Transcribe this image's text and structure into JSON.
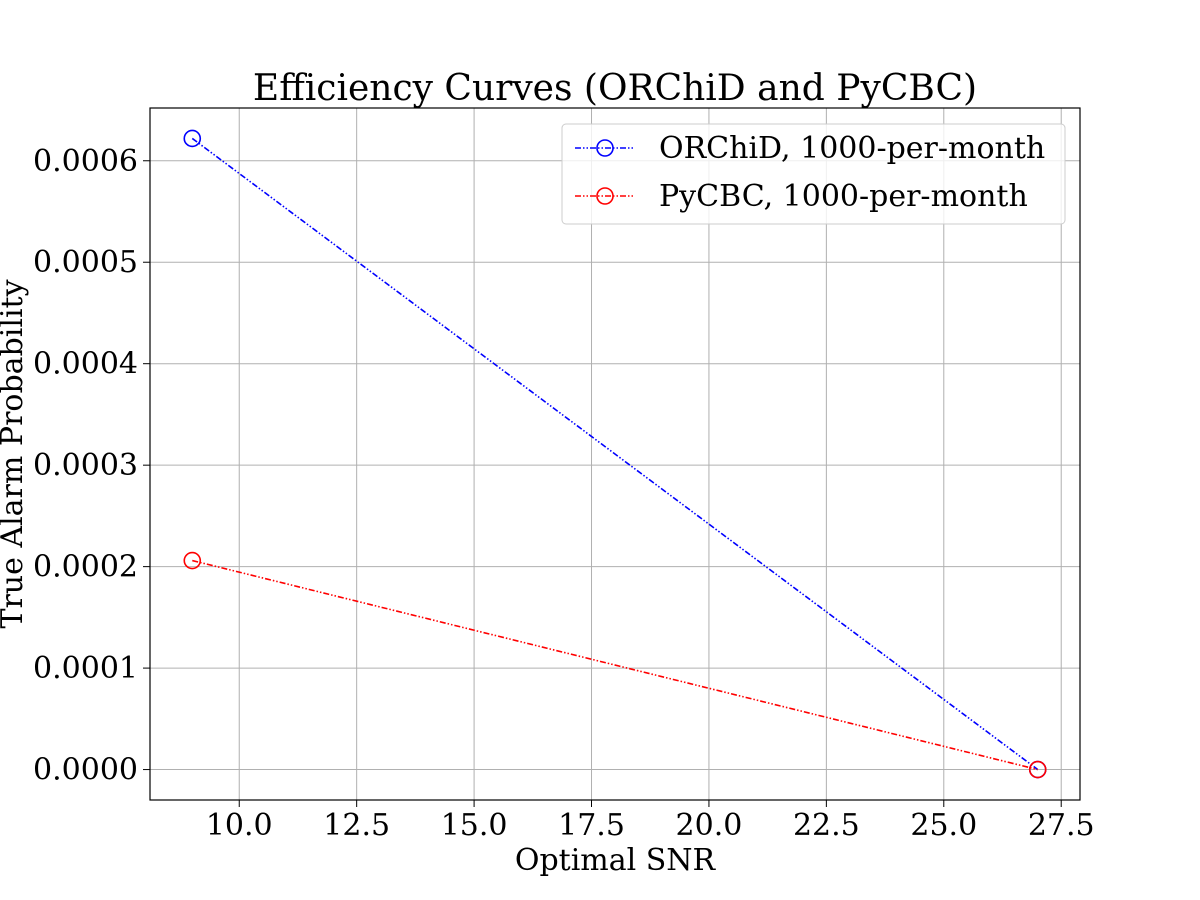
{
  "chart_data": {
    "type": "line",
    "title": "Efficiency Curves (ORChiD and PyCBC)",
    "xlabel": "Optimal SNR",
    "ylabel": "True Alarm Probability",
    "xlim": [
      8.1,
      27.9
    ],
    "ylim": [
      -3e-05,
      0.000652
    ],
    "xticks": [
      10.0,
      12.5,
      15.0,
      17.5,
      20.0,
      22.5,
      25.0,
      27.5
    ],
    "xtick_labels": [
      "10.0",
      "12.5",
      "15.0",
      "17.5",
      "20.0",
      "22.5",
      "25.0",
      "27.5"
    ],
    "yticks": [
      0.0,
      0.0001,
      0.0002,
      0.0003,
      0.0004,
      0.0005,
      0.0006
    ],
    "ytick_labels": [
      "0.0000",
      "0.0001",
      "0.0002",
      "0.0003",
      "0.0004",
      "0.0005",
      "0.0006"
    ],
    "grid": true,
    "legend_position": "top-right",
    "series": [
      {
        "name": "ORChiD, 1000-per-month",
        "color": "#0000ff",
        "marker": "circle-open",
        "line_style": "dash-dot-dot",
        "x": [
          9.0,
          27.0
        ],
        "y": [
          0.000622,
          0.0
        ]
      },
      {
        "name": "PyCBC, 1000-per-month",
        "color": "#ff0000",
        "marker": "circle-open",
        "line_style": "dash-dot-dot",
        "x": [
          9.0,
          27.0
        ],
        "y": [
          0.000206,
          0.0
        ]
      }
    ]
  }
}
